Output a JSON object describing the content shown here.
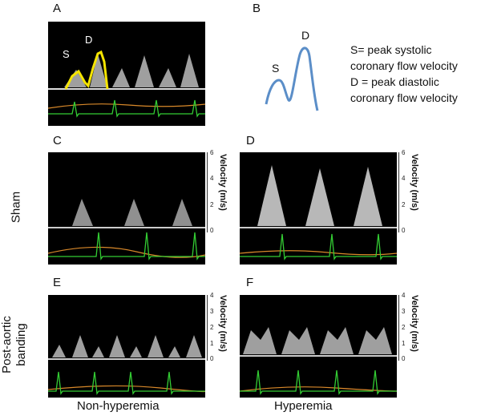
{
  "panels": {
    "A": "A",
    "B": "B",
    "C": "C",
    "D": "D",
    "E": "E",
    "F": "F"
  },
  "wave_labels": {
    "s": "S",
    "d": "D"
  },
  "legend": {
    "line1": "S= peak systolic",
    "line2": "coronary flow velocity",
    "line3": "D = peak diastolic",
    "line4": "coronary flow velocity"
  },
  "axis": {
    "velocity_label": "Velocity (m/s)",
    "sham_ticks": [
      "6",
      "4",
      "2",
      "0"
    ],
    "banding_ticks": [
      "4",
      "3",
      "2",
      "1",
      "0"
    ]
  },
  "rows": {
    "sham": "Sham",
    "banding": "Post-aortic banding"
  },
  "columns": {
    "non_hyperemia": "Non-hyperemia",
    "hyperemia": "Hyperemia"
  },
  "colors": {
    "trace_yellow": "#f5e400",
    "ecg_green": "#33cc33",
    "orange": "#d9892a",
    "schematic_blue": "#5b8ec8"
  }
}
